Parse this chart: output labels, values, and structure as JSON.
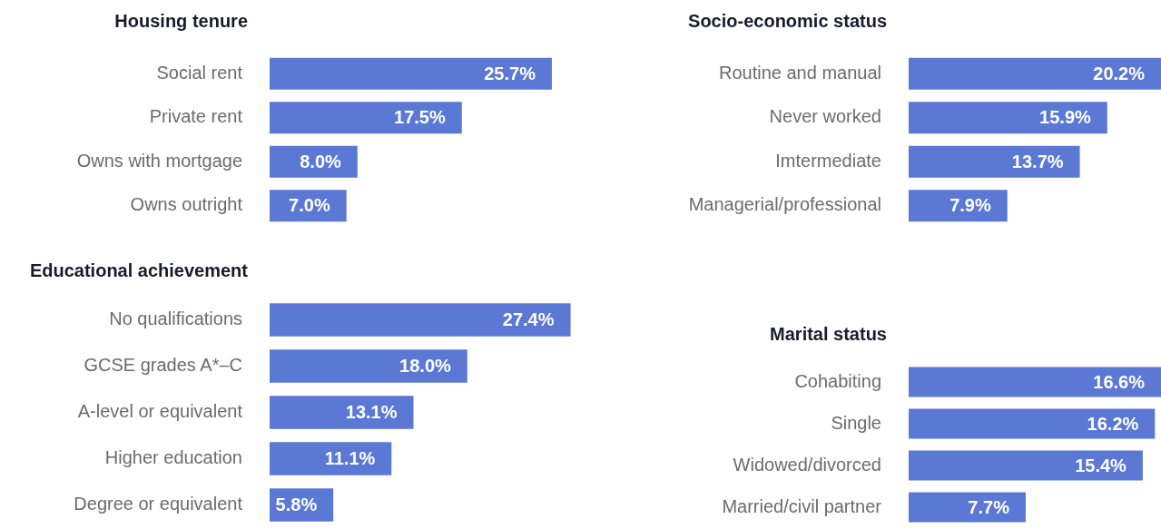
{
  "chart_data": [
    {
      "type": "bar",
      "orientation": "horizontal",
      "title": "Housing tenure",
      "categories": [
        "Social rent",
        "Private rent",
        "Owns with mortgage",
        "Owns outright"
      ],
      "values": [
        25.7,
        17.5,
        8.0,
        7.0
      ],
      "value_labels": [
        "25.7%",
        "17.5%",
        "8.0%",
        "7.0%"
      ],
      "color": "#5b78d4",
      "tick_labels": "y"
    },
    {
      "type": "bar",
      "orientation": "horizontal",
      "title": "Socio-economic status",
      "categories": [
        "Routine and manual",
        "Never worked",
        "Imtermediate",
        "Managerial/professional"
      ],
      "values": [
        20.2,
        15.9,
        13.7,
        7.9
      ],
      "value_labels": [
        "20.2%",
        "15.9%",
        "13.7%",
        "7.9%"
      ],
      "color": "#5b78d4",
      "tick_labels": "y"
    },
    {
      "type": "bar",
      "orientation": "horizontal",
      "title": "Educational achievement",
      "categories": [
        "No qualifications",
        "GCSE grades A*–C",
        "A-level or equivalent",
        "Higher education",
        "Degree or equivalent"
      ],
      "values": [
        27.4,
        18.0,
        13.1,
        11.1,
        5.8
      ],
      "value_labels": [
        "27.4%",
        "18.0%",
        "13.1%",
        "11.1%",
        "5.8%"
      ],
      "color": "#5b78d4",
      "tick_labels": "y"
    },
    {
      "type": "bar",
      "orientation": "horizontal",
      "title": "Marital status",
      "categories": [
        "Cohabiting",
        "Single",
        "Widowed/divorced",
        "Married/civil partner"
      ],
      "values": [
        16.6,
        16.2,
        15.4,
        7.7
      ],
      "value_labels": [
        "16.6%",
        "16.2%",
        "15.4%",
        "7.7%"
      ],
      "color": "#5b78d4",
      "tick_labels": "y"
    }
  ]
}
